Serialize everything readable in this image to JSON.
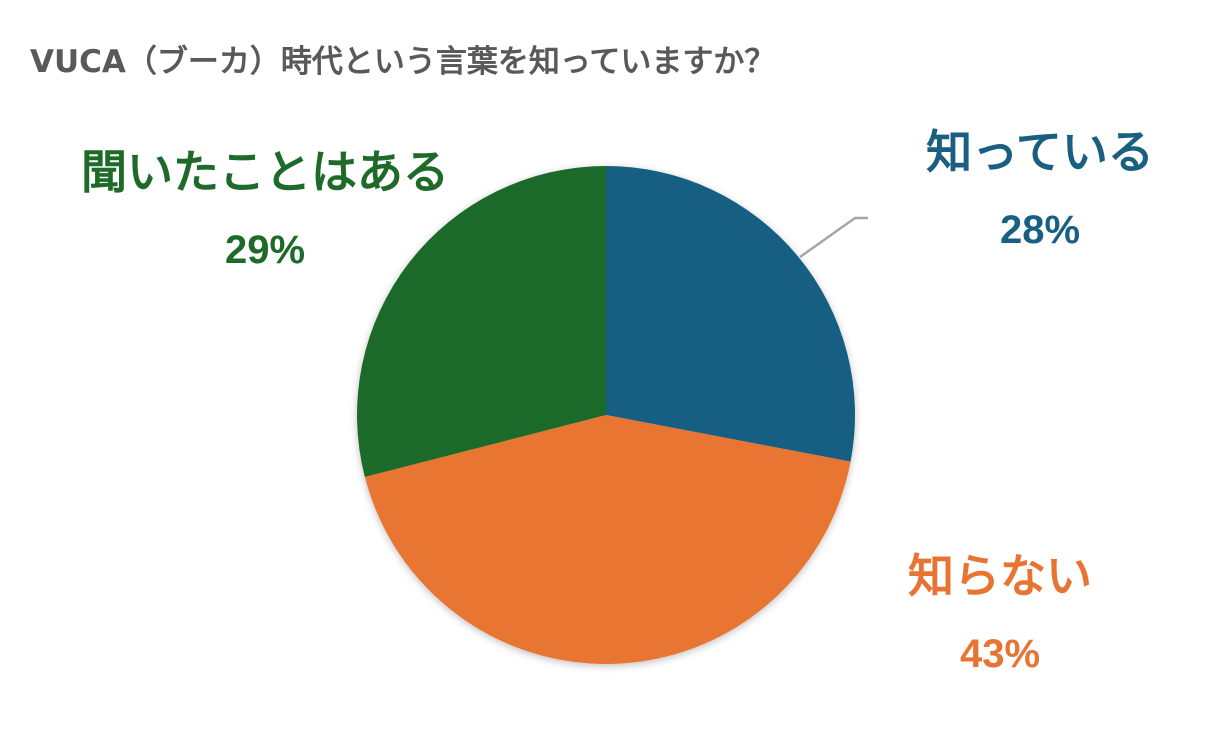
{
  "title": "VUCA（ブーカ）時代という言葉を知っていますか？",
  "colors": {
    "know": "#185f82",
    "dont_know": "#e87433",
    "heard": "#1e6b29",
    "title": "#595959",
    "leader_line": "#a6a6a6"
  },
  "labels": {
    "know": {
      "name": "知っている",
      "pct": "28%"
    },
    "dont_know": {
      "name": "知らない",
      "pct": "43%"
    },
    "heard": {
      "name": "聞いたことはある",
      "pct": "29%"
    }
  },
  "chart_data": {
    "type": "pie",
    "title": "VUCA（ブーカ）時代という言葉を知っていますか？",
    "categories": [
      "知っている",
      "知らない",
      "聞いたことはある"
    ],
    "values": [
      28,
      43,
      29
    ],
    "unit": "%",
    "start_angle": "12 o'clock, clockwise",
    "colors": [
      "#185f82",
      "#e87433",
      "#1e6b29"
    ],
    "legend": "none (data labels beside slices)",
    "data_labels": [
      "知っている 28%",
      "知らない 43%",
      "聞いたことはある 29%"
    ]
  }
}
